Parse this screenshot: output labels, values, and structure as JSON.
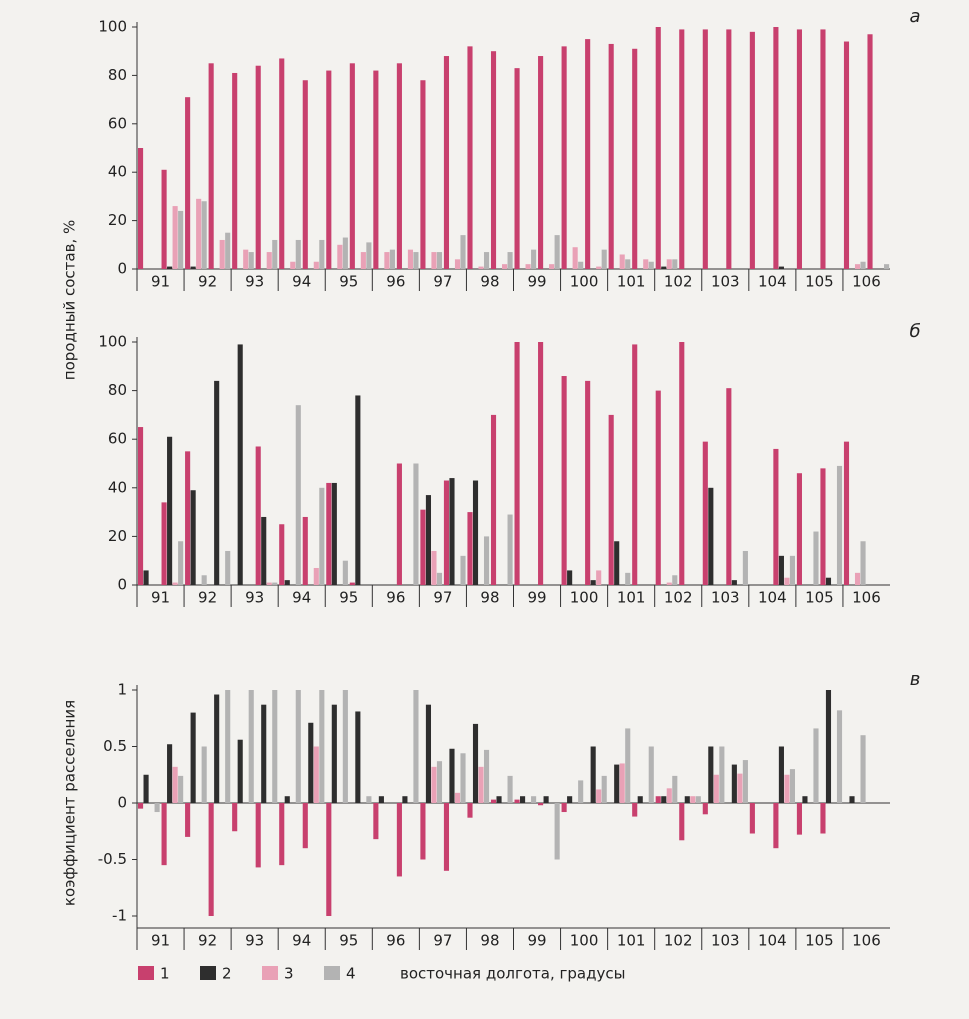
{
  "chart_data": [
    {
      "type": "bar",
      "panel": "а",
      "ylabel": "породный состав, %",
      "ylim": [
        0,
        100
      ],
      "yticks": [
        0,
        20,
        40,
        60,
        80,
        100
      ],
      "categories": [
        "91",
        null,
        "92",
        null,
        "93",
        null,
        "94",
        null,
        "95",
        null,
        "96",
        null,
        "97",
        null,
        "98",
        null,
        "99",
        null,
        "100",
        null,
        "101",
        null,
        "102",
        null,
        "103",
        null,
        "104",
        null,
        "105",
        null,
        "106",
        null
      ],
      "series": [
        {
          "color": "#c8406e",
          "values": [
            50,
            41,
            71,
            85,
            81,
            84,
            87,
            78,
            82,
            85,
            82,
            85,
            78,
            88,
            92,
            90,
            83,
            88,
            92,
            95,
            93,
            91,
            100,
            99,
            99,
            99,
            98,
            100,
            99,
            99,
            94,
            97
          ]
        },
        {
          "color": "#2e2e2e",
          "values": [
            0,
            1,
            1,
            0,
            0,
            0,
            0,
            0,
            0,
            0,
            0,
            0,
            0,
            0,
            0,
            0,
            0,
            0,
            0,
            0,
            0,
            0,
            1,
            0,
            0,
            0,
            0,
            1,
            0,
            0,
            0,
            0
          ]
        },
        {
          "color": "#e9a1b6",
          "values": [
            0,
            26,
            29,
            12,
            8,
            7,
            3,
            3,
            10,
            7,
            7,
            8,
            7,
            4,
            1,
            2,
            2,
            2,
            9,
            1,
            6,
            4,
            4,
            0,
            0,
            0,
            0,
            0,
            0,
            0,
            2,
            0
          ]
        },
        {
          "color": "#b3b3b3",
          "values": [
            0,
            24,
            28,
            15,
            7,
            12,
            12,
            12,
            13,
            11,
            8,
            7,
            7,
            14,
            7,
            7,
            8,
            14,
            3,
            8,
            4,
            3,
            4,
            0,
            0,
            0,
            0,
            0,
            0,
            0,
            3,
            2
          ]
        }
      ]
    },
    {
      "type": "bar",
      "panel": "б",
      "ylim": [
        0,
        100
      ],
      "yticks": [
        0,
        20,
        40,
        60,
        80,
        100
      ],
      "categories": [
        "91",
        null,
        "92",
        null,
        "93",
        null,
        "94",
        null,
        "95",
        null,
        "96",
        null,
        "97",
        null,
        "98",
        null,
        "99",
        null,
        "100",
        null,
        "101",
        null,
        "102",
        null,
        "103",
        null,
        "104",
        null,
        "105",
        null,
        "106",
        null
      ],
      "series": [
        {
          "color": "#c8406e",
          "values": [
            65,
            34,
            55,
            0,
            0,
            57,
            25,
            28,
            42,
            1,
            0,
            50,
            31,
            43,
            30,
            70,
            100,
            100,
            86,
            84,
            70,
            99,
            80,
            100,
            59,
            81,
            0,
            56,
            46,
            48,
            59,
            0
          ]
        },
        {
          "color": "#2e2e2e",
          "values": [
            6,
            61,
            39,
            84,
            99,
            28,
            2,
            0,
            42,
            78,
            0,
            0,
            37,
            44,
            43,
            0,
            0,
            0,
            6,
            2,
            18,
            0,
            0,
            0,
            40,
            2,
            0,
            12,
            0,
            3,
            0,
            0
          ]
        },
        {
          "color": "#e9a1b6",
          "values": [
            0,
            1,
            0,
            0,
            0,
            1,
            0,
            7,
            0,
            0,
            0,
            0,
            14,
            0,
            0,
            0,
            0,
            0,
            0,
            6,
            0,
            0,
            1,
            0,
            0,
            0,
            0,
            3,
            0,
            0,
            5,
            0
          ]
        },
        {
          "color": "#b3b3b3",
          "values": [
            0,
            18,
            4,
            14,
            0,
            1,
            74,
            40,
            10,
            0,
            0,
            50,
            5,
            12,
            20,
            29,
            0,
            0,
            0,
            0,
            5,
            0,
            4,
            0,
            0,
            14,
            0,
            12,
            22,
            49,
            18,
            0
          ]
        }
      ]
    },
    {
      "type": "bar",
      "panel": "в",
      "ylabel": "коэффициент расселения",
      "xlabel": "восточная долгота, градусы",
      "ylim": [
        -1,
        1
      ],
      "yticks": [
        -1,
        -0.5,
        0,
        0.5,
        1
      ],
      "categories": [
        "91",
        null,
        "92",
        null,
        "93",
        null,
        "94",
        null,
        "95",
        null,
        "96",
        null,
        "97",
        null,
        "98",
        null,
        "99",
        null,
        "100",
        null,
        "101",
        null,
        "102",
        null,
        "103",
        null,
        "104",
        null,
        "105",
        null,
        "106",
        null
      ],
      "series": [
        {
          "name": "1",
          "color": "#c8406e",
          "values": [
            -0.05,
            -0.55,
            -0.3,
            -1,
            -0.25,
            -0.57,
            -0.55,
            -0.4,
            -1,
            0,
            -0.32,
            -0.65,
            -0.5,
            -0.6,
            -0.13,
            0.03,
            0.03,
            -0.02,
            -0.08,
            0,
            0,
            -0.12,
            0.06,
            -0.33,
            -0.1,
            0,
            -0.27,
            -0.4,
            -0.28,
            -0.27,
            0,
            0
          ]
        },
        {
          "name": "2",
          "color": "#2e2e2e",
          "values": [
            0.25,
            0.52,
            0.8,
            0.96,
            0.56,
            0.87,
            0.06,
            0.71,
            0.87,
            0.81,
            0.06,
            0.06,
            0.87,
            0.48,
            0.7,
            0.06,
            0.06,
            0.06,
            0.06,
            0.5,
            0.34,
            0.06,
            0.06,
            0.06,
            0.5,
            0.34,
            0,
            0.5,
            0.06,
            1,
            0.06,
            0
          ]
        },
        {
          "name": "3",
          "color": "#e9a1b6",
          "values": [
            0,
            0.32,
            0,
            0,
            0,
            0,
            0,
            0.5,
            0,
            0,
            0,
            0,
            0.32,
            0.09,
            0.32,
            0,
            0,
            0,
            0,
            0.12,
            0.35,
            0,
            0.13,
            0.06,
            0.25,
            0.26,
            0,
            0.25,
            0,
            0,
            0,
            0
          ]
        },
        {
          "name": "4",
          "color": "#b3b3b3",
          "values": [
            -0.08,
            0.24,
            0.5,
            1,
            1,
            1,
            1,
            1,
            1,
            0.06,
            0,
            1,
            0.37,
            0.44,
            0.47,
            0.24,
            0.06,
            -0.5,
            0.2,
            0.24,
            0.66,
            0.5,
            0.24,
            0.06,
            0.5,
            0.38,
            0,
            0.3,
            0.66,
            0.82,
            0.6,
            0
          ]
        }
      ]
    }
  ]
}
